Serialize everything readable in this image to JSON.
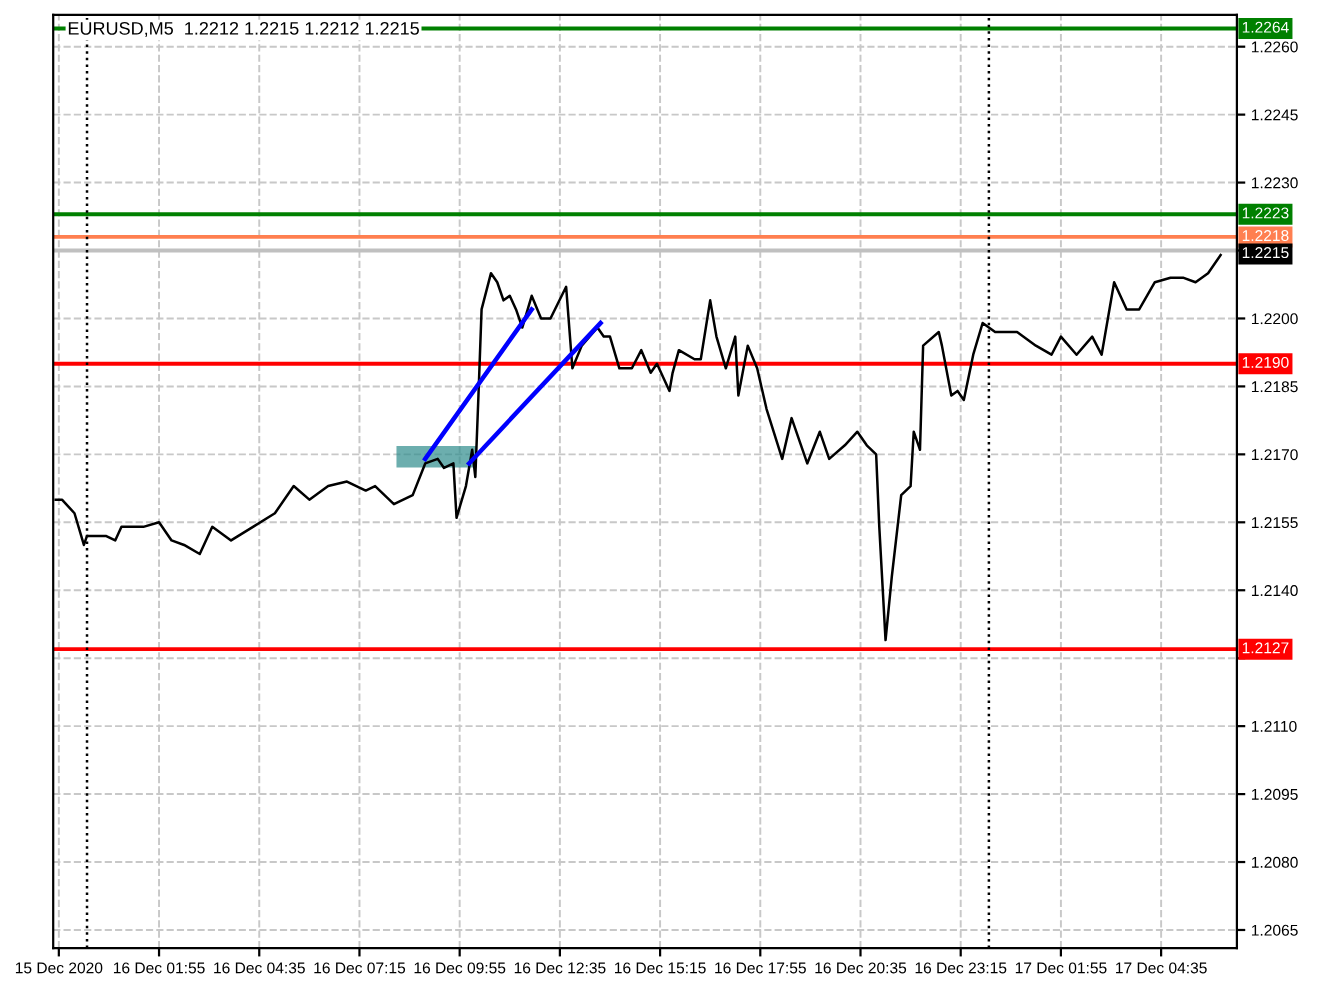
{
  "chart_data": {
    "type": "line",
    "title": "EURUSD,M5  1.2212 1.2215 1.2212 1.2215",
    "xlim": [
      "2020-12-15T23:06",
      "2020-12-17T06:36"
    ],
    "ylim": [
      1.2061,
      1.2267
    ],
    "xticks": [
      {
        "value": "2020-12-15T23:15",
        "label": "15 Dec 2020"
      },
      {
        "value": "2020-12-16T01:55",
        "label": "16 Dec 01:55"
      },
      {
        "value": "2020-12-16T04:35",
        "label": "16 Dec 04:35"
      },
      {
        "value": "2020-12-16T07:15",
        "label": "16 Dec 07:15"
      },
      {
        "value": "2020-12-16T09:55",
        "label": "16 Dec 09:55"
      },
      {
        "value": "2020-12-16T12:35",
        "label": "16 Dec 12:35"
      },
      {
        "value": "2020-12-16T15:15",
        "label": "16 Dec 15:15"
      },
      {
        "value": "2020-12-16T17:55",
        "label": "16 Dec 17:55"
      },
      {
        "value": "2020-12-16T20:35",
        "label": "16 Dec 20:35"
      },
      {
        "value": "2020-12-16T23:15",
        "label": "16 Dec 23:15"
      },
      {
        "value": "2020-12-17T01:55",
        "label": "17 Dec 01:55"
      },
      {
        "value": "2020-12-17T04:35",
        "label": "17 Dec 04:35"
      }
    ],
    "yticks": [
      1.2065,
      {
        "value": 1.208,
        "label": "1.2080"
      },
      1.2095,
      {
        "value": 1.211,
        "label": "1.2110"
      },
      {
        "value": 1.2125,
        "label": null
      },
      {
        "value": 1.214,
        "label": "1.2140"
      },
      1.2155,
      {
        "value": 1.217,
        "label": "1.2170"
      },
      1.2185,
      {
        "value": 1.22,
        "label": "1.2200"
      },
      {
        "value": 1.2215,
        "label": null
      },
      {
        "value": 1.223,
        "label": "1.2230"
      },
      1.2245,
      {
        "value": 1.226,
        "label": "1.2260"
      }
    ],
    "grid": true,
    "line_style": "solid",
    "series": [
      {
        "color": "#000000",
        "x": [
          "2020-12-15T23:10",
          "2020-12-15T23:20",
          "2020-12-15T23:40",
          "2020-12-15T23:55",
          "2020-12-16T00:00",
          "2020-12-16T00:30",
          "2020-12-16T00:45",
          "2020-12-16T00:55",
          "2020-12-16T01:30",
          "2020-12-16T01:55",
          "2020-12-16T02:15",
          "2020-12-16T02:35",
          "2020-12-16T03:00",
          "2020-12-16T03:20",
          "2020-12-16T03:50",
          "2020-12-16T04:25",
          "2020-12-16T05:00",
          "2020-12-16T05:30",
          "2020-12-16T05:55",
          "2020-12-16T06:25",
          "2020-12-16T06:55",
          "2020-12-16T07:25",
          "2020-12-16T07:40",
          "2020-12-16T08:10",
          "2020-12-16T08:40",
          "2020-12-16T09:00",
          "2020-12-16T09:20",
          "2020-12-16T09:30",
          "2020-12-16T09:45",
          "2020-12-16T09:50",
          "2020-12-16T10:05",
          "2020-12-16T10:15",
          "2020-12-16T10:20",
          "2020-12-16T10:25",
          "2020-12-16T10:30",
          "2020-12-16T10:45",
          "2020-12-16T10:55",
          "2020-12-16T11:05",
          "2020-12-16T11:15",
          "2020-12-16T11:25",
          "2020-12-16T11:35",
          "2020-12-16T11:50",
          "2020-12-16T12:05",
          "2020-12-16T12:20",
          "2020-12-16T12:45",
          "2020-12-16T12:55",
          "2020-12-16T13:10",
          "2020-12-16T13:35",
          "2020-12-16T13:45",
          "2020-12-16T13:55",
          "2020-12-16T14:10",
          "2020-12-16T14:30",
          "2020-12-16T14:45",
          "2020-12-16T15:00",
          "2020-12-16T15:10",
          "2020-12-16T15:30",
          "2020-12-16T15:35",
          "2020-12-16T15:45",
          "2020-12-16T16:10",
          "2020-12-16T16:20",
          "2020-12-16T16:35",
          "2020-12-16T16:45",
          "2020-12-16T17:00",
          "2020-12-16T17:15",
          "2020-12-16T17:20",
          "2020-12-16T17:35",
          "2020-12-16T17:50",
          "2020-12-16T18:05",
          "2020-12-16T18:30",
          "2020-12-16T18:45",
          "2020-12-16T19:10",
          "2020-12-16T19:30",
          "2020-12-16T19:45",
          "2020-12-16T20:10",
          "2020-12-16T20:30",
          "2020-12-16T20:45",
          "2020-12-16T21:00",
          "2020-12-16T21:05",
          "2020-12-16T21:15",
          "2020-12-16T21:25",
          "2020-12-16T21:40",
          "2020-12-16T21:55",
          "2020-12-16T22:00",
          "2020-12-16T22:10",
          "2020-12-16T22:15",
          "2020-12-16T22:40",
          "2020-12-16T22:45",
          "2020-12-16T23:00",
          "2020-12-16T23:10",
          "2020-12-16T23:20",
          "2020-12-16T23:35",
          "2020-12-16T23:50",
          "2020-12-17T00:10",
          "2020-12-17T00:45",
          "2020-12-17T01:15",
          "2020-12-17T01:40",
          "2020-12-17T01:55",
          "2020-12-17T02:20",
          "2020-12-17T02:45",
          "2020-12-17T03:00",
          "2020-12-17T03:20",
          "2020-12-17T03:40",
          "2020-12-17T04:00",
          "2020-12-17T04:25",
          "2020-12-17T04:50",
          "2020-12-17T05:10",
          "2020-12-17T05:30",
          "2020-12-17T05:50",
          "2020-12-17T06:10"
        ],
        "values": [
          1.216,
          1.216,
          1.2157,
          1.215,
          1.2152,
          1.2152,
          1.2151,
          1.2154,
          1.2154,
          1.2155,
          1.2151,
          1.215,
          1.2148,
          1.2154,
          1.2151,
          1.2154,
          1.2157,
          1.2163,
          1.216,
          1.2163,
          1.2164,
          1.2162,
          1.2163,
          1.2159,
          1.2161,
          1.2168,
          1.2169,
          1.2167,
          1.2168,
          1.2156,
          1.2163,
          1.2171,
          1.2165,
          1.2183,
          1.2202,
          1.221,
          1.2208,
          1.2204,
          1.2205,
          1.2202,
          1.2198,
          1.2205,
          1.22,
          1.22,
          1.2207,
          1.2189,
          1.2194,
          1.2198,
          1.2196,
          1.2196,
          1.2189,
          1.2189,
          1.2193,
          1.2188,
          1.219,
          1.2184,
          1.2188,
          1.2193,
          1.2191,
          1.2191,
          1.2204,
          1.2196,
          1.2189,
          1.2196,
          1.2183,
          1.2194,
          1.2189,
          1.218,
          1.2169,
          1.2178,
          1.2168,
          1.2175,
          1.2169,
          1.2172,
          1.2175,
          1.2172,
          1.217,
          1.2154,
          1.2129,
          1.2143,
          1.2161,
          1.2163,
          1.2175,
          1.2171,
          1.2194,
          1.2197,
          1.2194,
          1.2183,
          1.2184,
          1.2182,
          1.2192,
          1.2199,
          1.2197,
          1.2197,
          1.2194,
          1.2192,
          1.2196,
          1.2192,
          1.2196,
          1.2192,
          1.2208,
          1.2202,
          1.2202,
          1.2208,
          1.2209,
          1.2209,
          1.2208,
          1.221,
          1.2214
        ]
      },
      {
        "color": "#0000ff",
        "x": [
          "2020-12-16T09:00",
          "2020-12-16T11:50"
        ],
        "values": [
          1.2169,
          1.2202
        ]
      },
      {
        "color": "#0000ff",
        "x": [
          "2020-12-16T10:10",
          "2020-12-16T13:40"
        ],
        "values": [
          1.2168,
          1.2199
        ]
      }
    ],
    "ref_lines": [
      {
        "axis": "y",
        "value": 1.2264,
        "label": "1.2264",
        "color": "#008000"
      },
      {
        "axis": "y",
        "value": 1.2223,
        "label": "1.2223",
        "color": "#008000"
      },
      {
        "axis": "y",
        "value": 1.2218,
        "label": "1.2218",
        "color": "#ff7f50"
      },
      {
        "axis": "y",
        "value": 1.2215,
        "label": "1.2215",
        "color": "#c0c0c0"
      },
      {
        "axis": "y",
        "value": 1.219,
        "label": "1.2190",
        "color": "#ff0000"
      },
      {
        "axis": "y",
        "value": 1.2127,
        "label": "1.2127",
        "color": "#ff0000"
      },
      {
        "axis": "x",
        "value": "2020-12-16T00:00",
        "color": "#000000",
        "line_style": "dotted"
      },
      {
        "axis": "x",
        "value": "2020-12-17T00:00",
        "color": "#000000",
        "line_style": "dotted"
      }
    ]
  }
}
